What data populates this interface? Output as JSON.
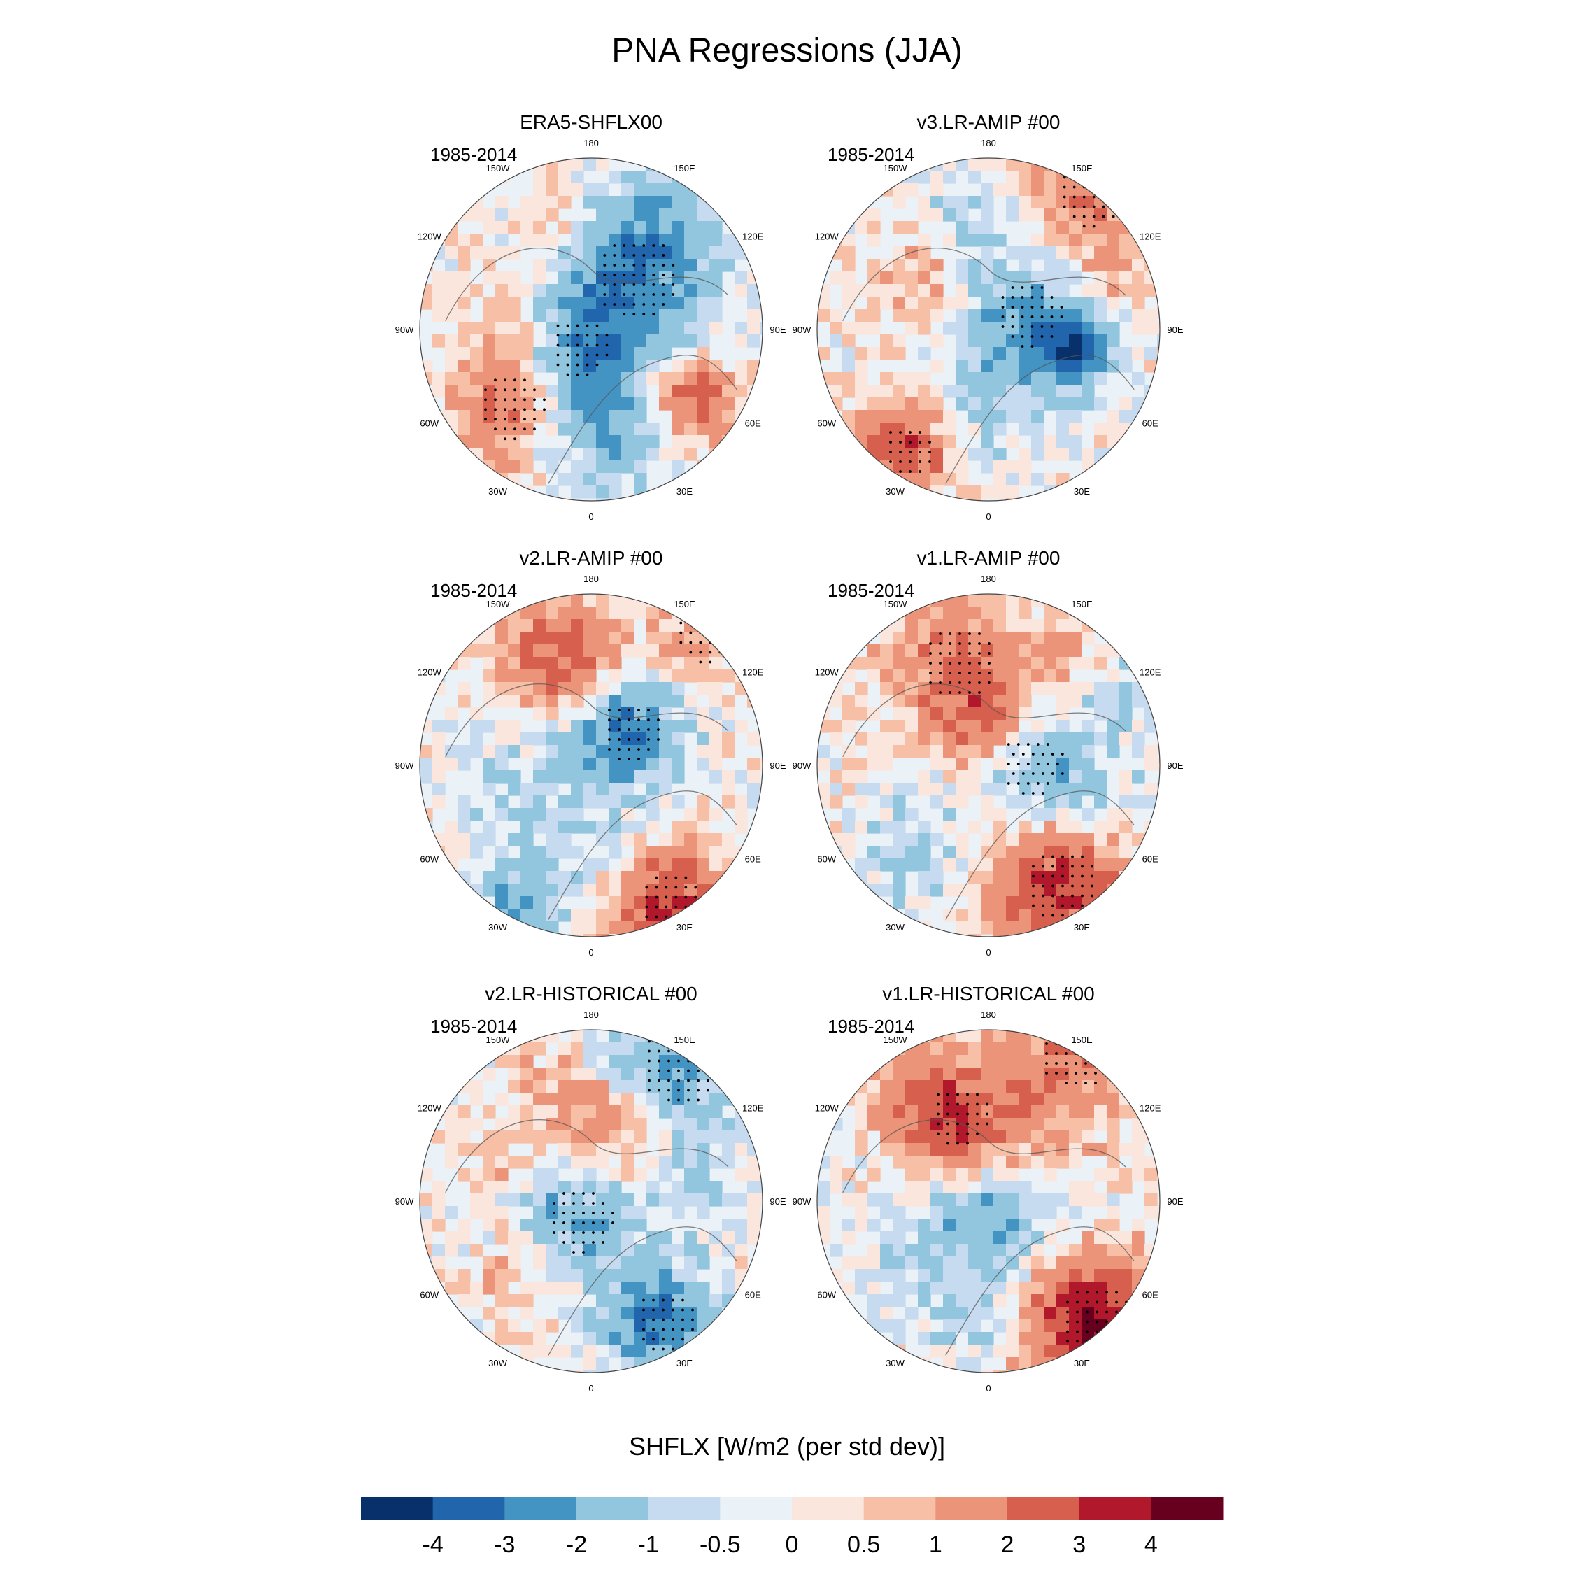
{
  "chart_data": {
    "type": "heatmap",
    "projection": "north-polar-stereographic",
    "title": "PNA Regressions (JJA)",
    "variable": "SHFLX",
    "colorbar": {
      "title": "SHFLX [W/m2 (per std dev)]",
      "orientation": "horizontal",
      "placement": "bottom",
      "levels": [
        "-4",
        "-3",
        "-2",
        "-1",
        "-0.5",
        "0",
        "0.5",
        "1",
        "2",
        "3",
        "4"
      ],
      "colors": [
        "#08306b",
        "#2166ac",
        "#4393c3",
        "#92c5de",
        "#c6dbef",
        "#eaf2f8",
        "#fbe6dd",
        "#f7c0a6",
        "#eb9479",
        "#d6604d",
        "#b2182b",
        "#67001f"
      ]
    },
    "longitude_labels": [
      "180",
      "150E",
      "120E",
      "90E",
      "60E",
      "30E",
      "0",
      "30W",
      "60W",
      "90W",
      "120W",
      "150W"
    ],
    "panels": [
      {
        "title": "ERA5-SHFLX00",
        "period": "1985-2014"
      },
      {
        "title": "v3.LR-AMIP  #00",
        "period": "1985-2014"
      },
      {
        "title": "v2.LR-AMIP  #00",
        "period": "1985-2014"
      },
      {
        "title": "v1.LR-AMIP  #00",
        "period": "1985-2014"
      },
      {
        "title": "v2.LR-HISTORICAL  #00",
        "period": "1985-2014"
      },
      {
        "title": "v1.LR-HISTORICAL  #00",
        "period": "1985-2014"
      }
    ],
    "stippling": "statistically significant regions"
  }
}
